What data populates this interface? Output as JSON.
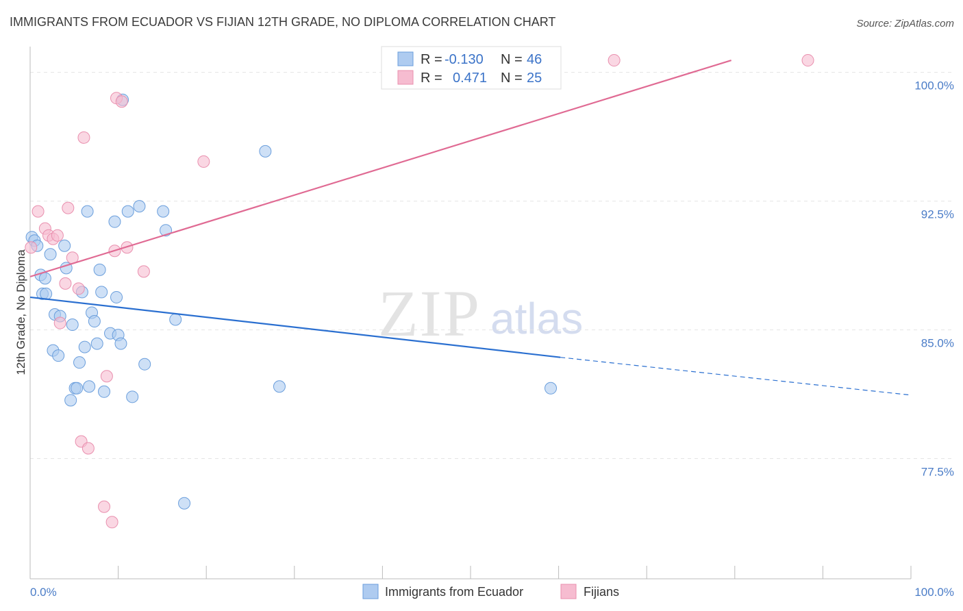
{
  "title": "IMMIGRANTS FROM ECUADOR VS FIJIAN 12TH GRADE, NO DIPLOMA CORRELATION CHART",
  "source": "Source: ZipAtlas.com",
  "watermark": {
    "part1": "ZIP",
    "part2": "atlas"
  },
  "colors": {
    "ecuador_fill": "#aecbf0",
    "ecuador_stroke": "#6a9edc",
    "ecuador_line": "#2a6fd0",
    "fijian_fill": "#f6bcd0",
    "fijian_stroke": "#e98fae",
    "fijian_line": "#e06a93",
    "tick_text": "#4a7cc7",
    "grid": "#e4e4e4"
  },
  "legend": {
    "rows": [
      {
        "r_label": "R = ",
        "r_value": "-0.130",
        "n_label": "N = ",
        "n_value": "46"
      },
      {
        "r_label": "R = ",
        "r_value": "0.471",
        "n_label": "N = ",
        "n_value": "25"
      }
    ]
  },
  "chart_data": {
    "type": "scatter",
    "title": "IMMIGRANTS FROM ECUADOR VS FIJIAN 12TH GRADE, NO DIPLOMA CORRELATION CHART",
    "xlabel": "",
    "ylabel": "12th Grade, No Diploma",
    "xlim": [
      0,
      100
    ],
    "ylim": [
      70.5,
      101.5
    ],
    "x_tick_labels": [
      "0.0%",
      "100.0%"
    ],
    "y_ticks": [
      77.5,
      85.0,
      92.5,
      100.0
    ],
    "y_tick_labels": [
      "77.5%",
      "85.0%",
      "92.5%",
      "100.0%"
    ],
    "grid": "horizontal dashed",
    "legend_position": "top-center and bottom",
    "series": [
      {
        "name": "Immigrants from Ecuador",
        "color": "#aecbf0",
        "points": [
          [
            0.2,
            90.4
          ],
          [
            0.5,
            90.2
          ],
          [
            0.8,
            89.9
          ],
          [
            1.2,
            88.2
          ],
          [
            1.4,
            87.1
          ],
          [
            1.7,
            88.0
          ],
          [
            1.8,
            87.1
          ],
          [
            2.3,
            89.4
          ],
          [
            2.8,
            85.9
          ],
          [
            2.6,
            83.8
          ],
          [
            3.2,
            83.5
          ],
          [
            3.4,
            85.8
          ],
          [
            3.9,
            89.9
          ],
          [
            4.1,
            88.6
          ],
          [
            4.6,
            80.9
          ],
          [
            4.8,
            85.3
          ],
          [
            5.1,
            81.6
          ],
          [
            5.3,
            81.6
          ],
          [
            5.6,
            83.1
          ],
          [
            5.9,
            87.2
          ],
          [
            6.2,
            84.0
          ],
          [
            6.5,
            91.9
          ],
          [
            6.7,
            81.7
          ],
          [
            7.0,
            86.0
          ],
          [
            7.3,
            85.5
          ],
          [
            7.6,
            84.2
          ],
          [
            7.9,
            88.5
          ],
          [
            8.1,
            87.2
          ],
          [
            8.4,
            81.4
          ],
          [
            9.1,
            84.8
          ],
          [
            9.6,
            91.3
          ],
          [
            9.8,
            86.9
          ],
          [
            10.0,
            84.7
          ],
          [
            10.3,
            84.2
          ],
          [
            10.5,
            98.4
          ],
          [
            11.1,
            91.9
          ],
          [
            11.6,
            81.1
          ],
          [
            12.4,
            92.2
          ],
          [
            13.0,
            83.0
          ],
          [
            15.1,
            91.9
          ],
          [
            15.4,
            90.8
          ],
          [
            16.5,
            85.6
          ],
          [
            17.5,
            74.9
          ],
          [
            26.7,
            95.4
          ],
          [
            28.3,
            81.7
          ],
          [
            59.1,
            81.6
          ]
        ]
      },
      {
        "name": "Fijians",
        "color": "#f6bcd0",
        "points": [
          [
            0.1,
            89.8
          ],
          [
            0.9,
            91.9
          ],
          [
            1.7,
            90.9
          ],
          [
            2.1,
            90.5
          ],
          [
            2.6,
            90.3
          ],
          [
            3.1,
            90.5
          ],
          [
            3.4,
            85.4
          ],
          [
            4.0,
            87.7
          ],
          [
            4.3,
            92.1
          ],
          [
            4.8,
            89.2
          ],
          [
            5.5,
            87.4
          ],
          [
            5.8,
            78.5
          ],
          [
            6.1,
            96.2
          ],
          [
            6.6,
            78.1
          ],
          [
            8.4,
            74.7
          ],
          [
            8.7,
            82.3
          ],
          [
            9.6,
            89.6
          ],
          [
            9.8,
            98.5
          ],
          [
            10.4,
            98.3
          ],
          [
            11.0,
            89.8
          ],
          [
            12.9,
            88.4
          ],
          [
            19.7,
            94.8
          ],
          [
            66.3,
            100.7
          ],
          [
            88.3,
            100.7
          ],
          [
            9.3,
            73.8
          ]
        ]
      }
    ],
    "trend_lines": [
      {
        "series": "Immigrants from Ecuador",
        "x": [
          0,
          60.2
        ],
        "y": [
          86.9,
          83.4
        ],
        "dashed_extension_to": [
          100,
          81.2
        ]
      },
      {
        "series": "Fijians",
        "x": [
          0,
          79.6
        ],
        "y": [
          88.1,
          100.7
        ]
      }
    ]
  },
  "bottom_legend": {
    "items": [
      {
        "label": "Immigrants from Ecuador"
      },
      {
        "label": "Fijians"
      }
    ]
  }
}
